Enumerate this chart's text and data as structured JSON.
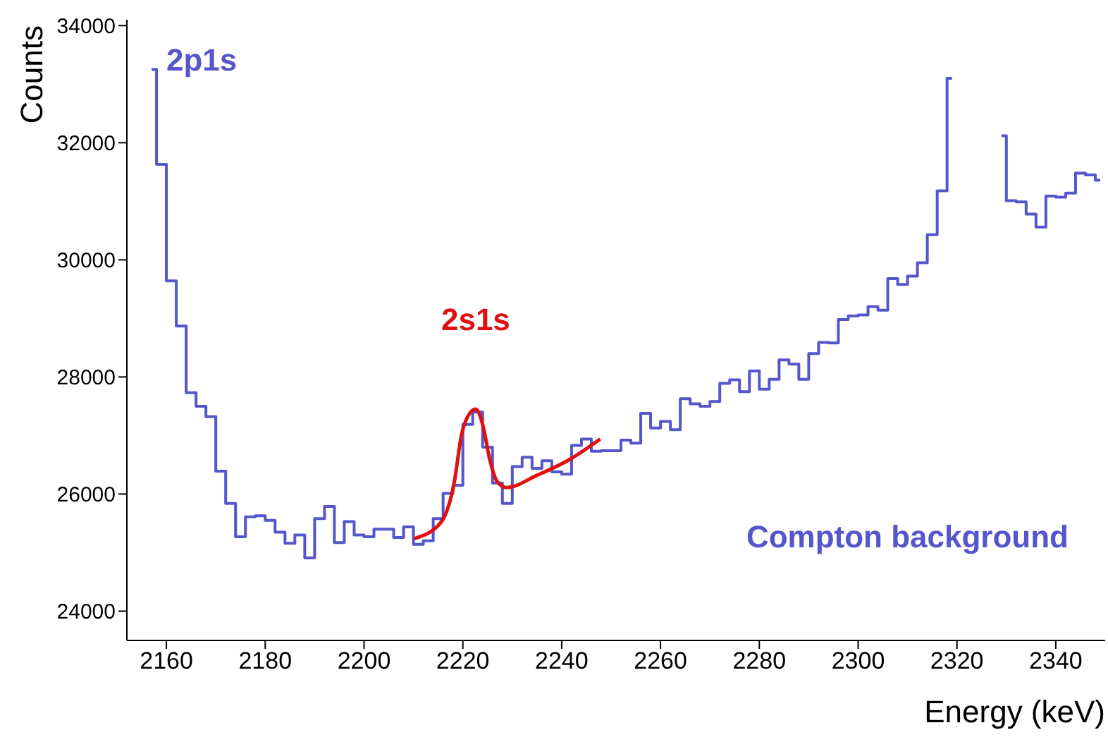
{
  "chart_data": {
    "type": "step",
    "xlabel": "Energy (keV)",
    "ylabel": "Counts",
    "xlim": [
      2152,
      2350
    ],
    "ylim": [
      23500,
      34100
    ],
    "xticks": [
      2160,
      2180,
      2200,
      2220,
      2240,
      2260,
      2280,
      2300,
      2320,
      2340
    ],
    "yticks": [
      24000,
      26000,
      28000,
      30000,
      32000,
      34000
    ],
    "grid": false,
    "legend": false,
    "series": [
      {
        "color": "#5555cc",
        "x": [
          2157,
          2159,
          2161,
          2163,
          2165,
          2167,
          2169,
          2171,
          2173,
          2175,
          2177,
          2179,
          2181,
          2183,
          2185,
          2187,
          2189,
          2191,
          2193,
          2195,
          2197,
          2199,
          2201,
          2203,
          2205,
          2207,
          2209,
          2211,
          2213,
          2215,
          2217,
          2219,
          2221,
          2223,
          2225,
          2227,
          2229,
          2231,
          2233,
          2235,
          2237,
          2239,
          2241,
          2243,
          2245,
          2247,
          2249,
          2251,
          2253,
          2255,
          2257,
          2259,
          2261,
          2263,
          2265,
          2267,
          2269,
          2271,
          2273,
          2275,
          2277,
          2279,
          2281,
          2283,
          2285,
          2287,
          2289,
          2291,
          2293,
          2295,
          2297,
          2299,
          2301,
          2303,
          2305,
          2307,
          2309,
          2311,
          2313,
          2315,
          2317,
          2319,
          2321,
          2323,
          2325,
          2327,
          2329,
          2331,
          2333,
          2335,
          2337,
          2339,
          2341,
          2343,
          2345,
          2347,
          2349
        ],
        "values": [
          33250,
          31630,
          29640,
          28870,
          27730,
          27500,
          27320,
          26390,
          25840,
          25270,
          25610,
          25630,
          25550,
          25350,
          25160,
          25300,
          24910,
          25580,
          25790,
          25170,
          25530,
          25300,
          25270,
          25400,
          25400,
          25260,
          25440,
          25140,
          25200,
          25580,
          26010,
          26150,
          27190,
          27400,
          26800,
          26190,
          25840,
          26470,
          26630,
          26440,
          26570,
          26380,
          26340,
          26830,
          26940,
          26730,
          26740,
          26740,
          26920,
          26870,
          27380,
          27130,
          27240,
          27100,
          27630,
          27540,
          27500,
          27580,
          27890,
          27950,
          27750,
          28100,
          27790,
          27960,
          28290,
          28220,
          27960,
          28400,
          28590,
          28580,
          28980,
          29040,
          29060,
          29200,
          29140,
          29680,
          29580,
          29720,
          29950,
          30430,
          31180,
          33100,
          null,
          null,
          null,
          null,
          32120,
          31010,
          30990,
          30780,
          30560,
          31090,
          31070,
          31140,
          31480,
          31450,
          31360
        ]
      },
      {
        "type": "line",
        "color": "#e01010",
        "x": [
          2210.2,
          2215.5,
          2218.3,
          2219.7,
          2221.4,
          2222.6,
          2224,
          2225.5,
          2226.9,
          2228.8,
          2235,
          2241.6,
          2247.8
        ],
        "values": [
          25240,
          25510,
          26220,
          27000,
          27380,
          27450,
          27190,
          26570,
          26220,
          26110,
          26320,
          26590,
          26940
        ]
      }
    ],
    "annotations": [
      "2p1s",
      {
        "text": "2s1s",
        "x": 2222.6,
        "y": 27450
      },
      "Compton background"
    ]
  }
}
